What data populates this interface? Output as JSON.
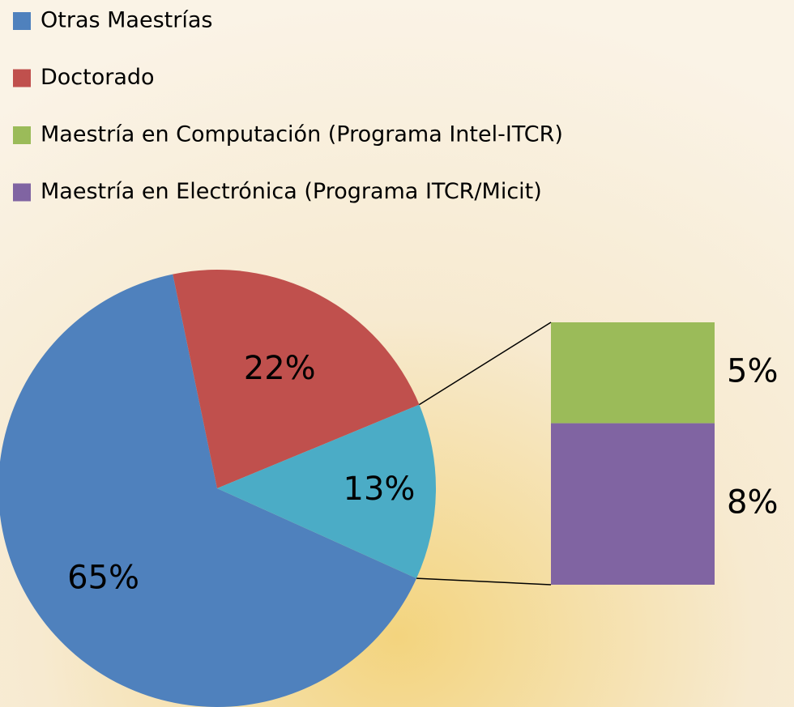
{
  "chart_data": {
    "type": "pie",
    "categories": [
      "Otras Maestrías",
      "Doctorado",
      null
    ],
    "values": [
      65,
      22,
      13
    ],
    "value_labels": [
      "65%",
      "22%",
      "13%"
    ],
    "colors": [
      "#4f81bd",
      "#c0504d",
      "#4bacc6"
    ],
    "breakdown": {
      "categories": [
        "Maestría en Computación (Programa Intel-ITCR)",
        "Maestría en Electrónica (Programa ITCR/Micit)"
      ],
      "values": [
        5,
        8
      ],
      "value_labels": [
        "5%",
        "8%"
      ],
      "colors": [
        "#9bbb59",
        "#8064a2"
      ]
    }
  }
}
